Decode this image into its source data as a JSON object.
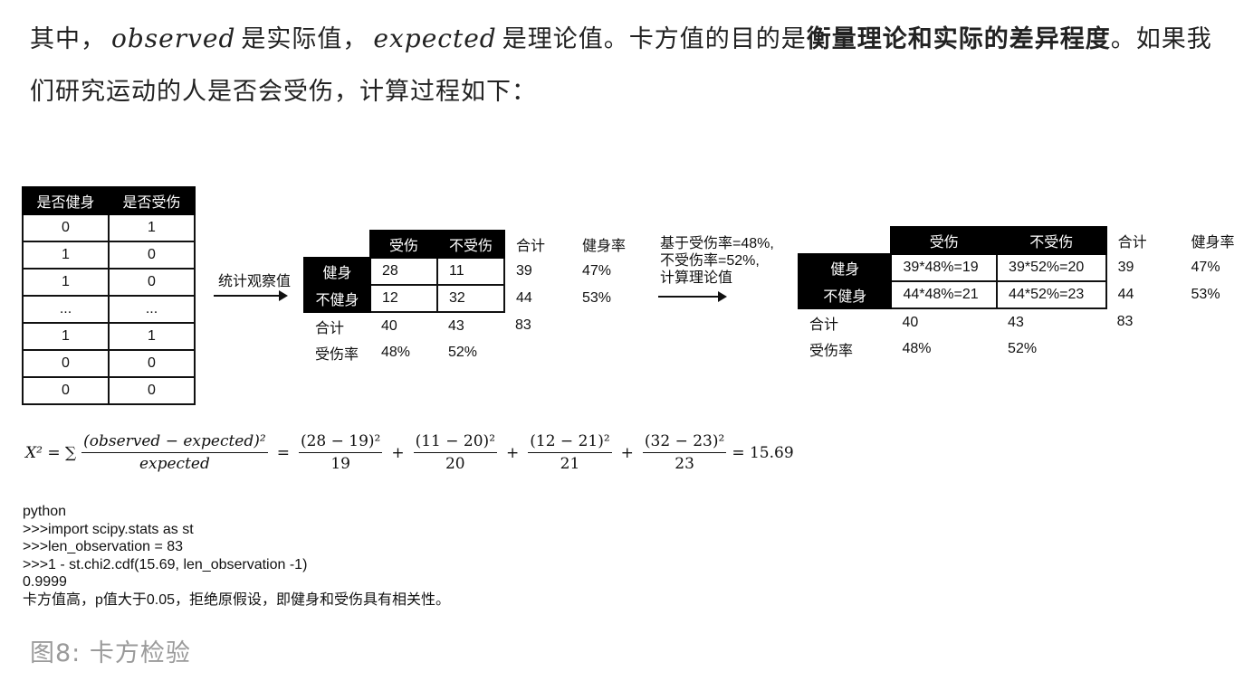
{
  "paragraph": {
    "p1": "其中，",
    "observed": "observed",
    "p2": "是实际值，",
    "expected": "expected",
    "p3": "是理论值。卡方值的目的是",
    "bold1": "衡量理论和实际的差异程",
    "bold2": "度",
    "p4": "。如果我们研究运动的人是否会受伤，计算过程如下："
  },
  "raw_table": {
    "headers": [
      "是否健身",
      "是否受伤"
    ],
    "rows": [
      [
        "0",
        "1"
      ],
      [
        "1",
        "0"
      ],
      [
        "1",
        "0"
      ],
      [
        "...",
        "..."
      ],
      [
        "1",
        "1"
      ],
      [
        "0",
        "0"
      ],
      [
        "0",
        "0"
      ]
    ]
  },
  "arrow1_label": "统计观察值",
  "observed_table": {
    "col_headers": [
      "受伤",
      "不受伤"
    ],
    "extra_headers": [
      "合计",
      "健身率"
    ],
    "row_headers": [
      "健身",
      "不健身"
    ],
    "cells": [
      [
        "28",
        "11"
      ],
      [
        "12",
        "32"
      ]
    ],
    "row_totals": [
      "39",
      "44"
    ],
    "row_rates": [
      "47%",
      "53%"
    ],
    "total_label": "合计",
    "col_totals": [
      "40",
      "43",
      "83"
    ],
    "rate_label": "受伤率",
    "col_rates": [
      "48%",
      "52%"
    ]
  },
  "arrow2_label": [
    "基于受伤率=48%,",
    "不受伤率=52%,",
    "计算理论值"
  ],
  "expected_table": {
    "col_headers": [
      "受伤",
      "不受伤"
    ],
    "extra_headers": [
      "合计",
      "健身率"
    ],
    "row_headers": [
      "健身",
      "不健身"
    ],
    "cells": [
      [
        "39*48%=19",
        "39*52%=20"
      ],
      [
        "44*48%=21",
        "44*52%=23"
      ]
    ],
    "row_totals": [
      "39",
      "44"
    ],
    "row_rates": [
      "47%",
      "53%"
    ],
    "total_label": "合计",
    "col_totals": [
      "40",
      "43",
      "83"
    ],
    "rate_label": "受伤率",
    "col_rates": [
      "48%",
      "52%"
    ]
  },
  "formula": {
    "lhs": "X² = ∑",
    "main_num": "(observed − expected)²",
    "main_den": "expected",
    "terms": [
      {
        "num": "(28 − 19)²",
        "den": "19"
      },
      {
        "num": "(11 − 20)²",
        "den": "20"
      },
      {
        "num": "(12 − 21)²",
        "den": "21"
      },
      {
        "num": "(32 − 23)²",
        "den": "23"
      }
    ],
    "result": "= 15.69"
  },
  "code_lines": [
    "python",
    ">>>import scipy.stats as st",
    ">>>len_observation = 83",
    ">>>1 - st.chi2.cdf(15.69, len_observation -1)",
    "0.9999",
    "卡方值高，p值大于0.05，拒绝原假设，即健身和受伤具有相关性。"
  ],
  "caption": "图8: 卡方检验"
}
